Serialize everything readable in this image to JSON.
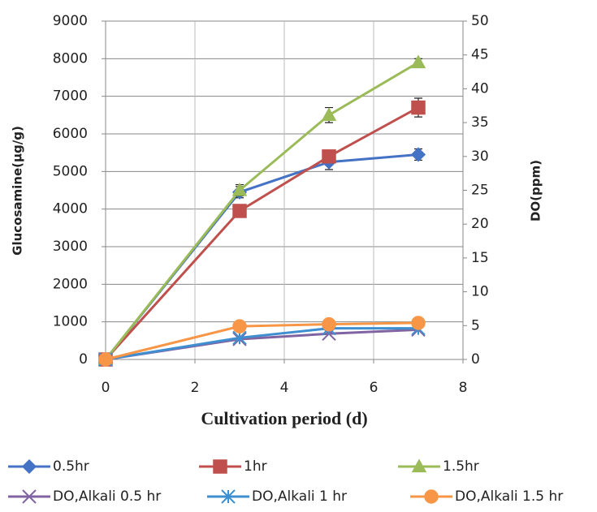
{
  "chart_data": {
    "type": "line",
    "x_label": "Cultivation period (d)",
    "y_label": "Glucosamine(µg/g)",
    "y2_label": "DO(ppm)",
    "x": [
      0,
      3,
      5,
      7
    ],
    "xlim": [
      0,
      8
    ],
    "xticks": [
      0,
      2,
      4,
      6,
      8
    ],
    "ylim": [
      0,
      9000
    ],
    "yticks": [
      0,
      1000,
      2000,
      3000,
      4000,
      5000,
      6000,
      7000,
      8000,
      9000
    ],
    "y2lim": [
      0,
      50
    ],
    "y2ticks": [
      0,
      5,
      10,
      15,
      20,
      25,
      30,
      35,
      40,
      45,
      50
    ],
    "grid": true,
    "series": [
      {
        "name": "0.5hr",
        "color": "#4472c4",
        "marker": "diamond",
        "values": [
          0,
          4450,
          5250,
          5450
        ],
        "errors": [
          0,
          150,
          200,
          150
        ]
      },
      {
        "name": "1hr",
        "color": "#c0504d",
        "marker": "square",
        "values": [
          0,
          3950,
          5400,
          6700
        ],
        "errors": [
          0,
          100,
          100,
          250
        ]
      },
      {
        "name": "1.5hr",
        "color": "#9bbb59",
        "marker": "triangle",
        "values": [
          0,
          4500,
          6500,
          7900
        ],
        "errors": [
          0,
          150,
          200,
          100
        ]
      },
      {
        "name": "DO,Alkali 0.5 hr",
        "color": "#8064a2",
        "marker": "x",
        "axis": "y2",
        "values": [
          0,
          3.0,
          3.8,
          4.4
        ]
      },
      {
        "name": "DO,Alkali 1 hr",
        "color": "#3f8fd0",
        "marker": "star",
        "axis": "y2",
        "values": [
          0,
          3.2,
          4.6,
          4.6
        ]
      },
      {
        "name": "DO,Alkali 1.5 hr",
        "color": "#f79646",
        "marker": "circle",
        "axis": "y2",
        "values": [
          0,
          4.9,
          5.2,
          5.4
        ]
      }
    ]
  }
}
